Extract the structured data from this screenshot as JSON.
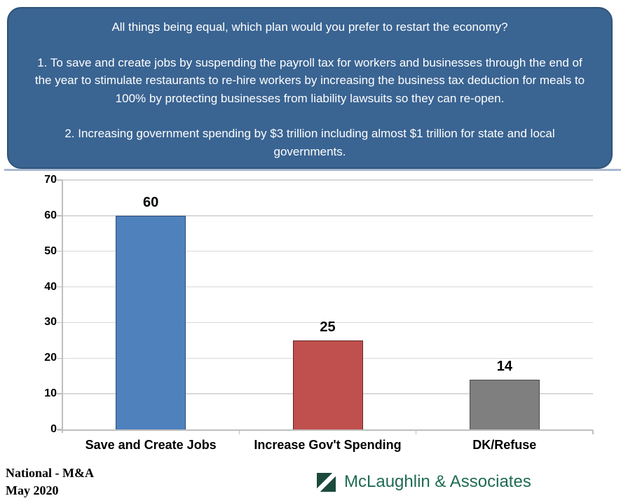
{
  "header": {
    "question": "All things being equal, which plan would you prefer to restart the economy?",
    "option1": "1.  To save and create jobs by suspending the payroll tax for workers and businesses through the end of the year to stimulate restaurants to re-hire workers by increasing the business tax deduction for meals to 100% by protecting businesses from liability lawsuits so they can re-open.",
    "option2": "2. Increasing government spending by $3 trillion including almost $1 trillion for state and local governments.",
    "background_color": "#3A6492",
    "text_color": "#FFFFFF",
    "divider_color": "#A9B9D2"
  },
  "chart_data": {
    "type": "bar",
    "categories": [
      "Save and Create Jobs",
      "Increase Gov't Spending",
      "DK/Refuse"
    ],
    "values": [
      60,
      25,
      14
    ],
    "bar_colors": [
      "#4F81BD",
      "#C0504D",
      "#7F7F7F"
    ],
    "bar_border_colors": [
      "#2C4D75",
      "#622423",
      "#4A4A4A"
    ],
    "title": "",
    "xlabel": "",
    "ylabel": "",
    "ylim": [
      0,
      70
    ],
    "yticks": [
      0,
      10,
      20,
      30,
      40,
      50,
      60,
      70
    ],
    "grid": true,
    "gridline_color": "#D9D9D9",
    "axis_color": "#BFBFBF",
    "legend": false,
    "data_labels_shown": true
  },
  "footer": {
    "left_line1": "National - M&A",
    "left_line2": "May 2020",
    "logo_text": "McLaughlin & Associates",
    "logo_text_color": "#1F6B54",
    "logo_square_color": "#1C4A3D"
  }
}
